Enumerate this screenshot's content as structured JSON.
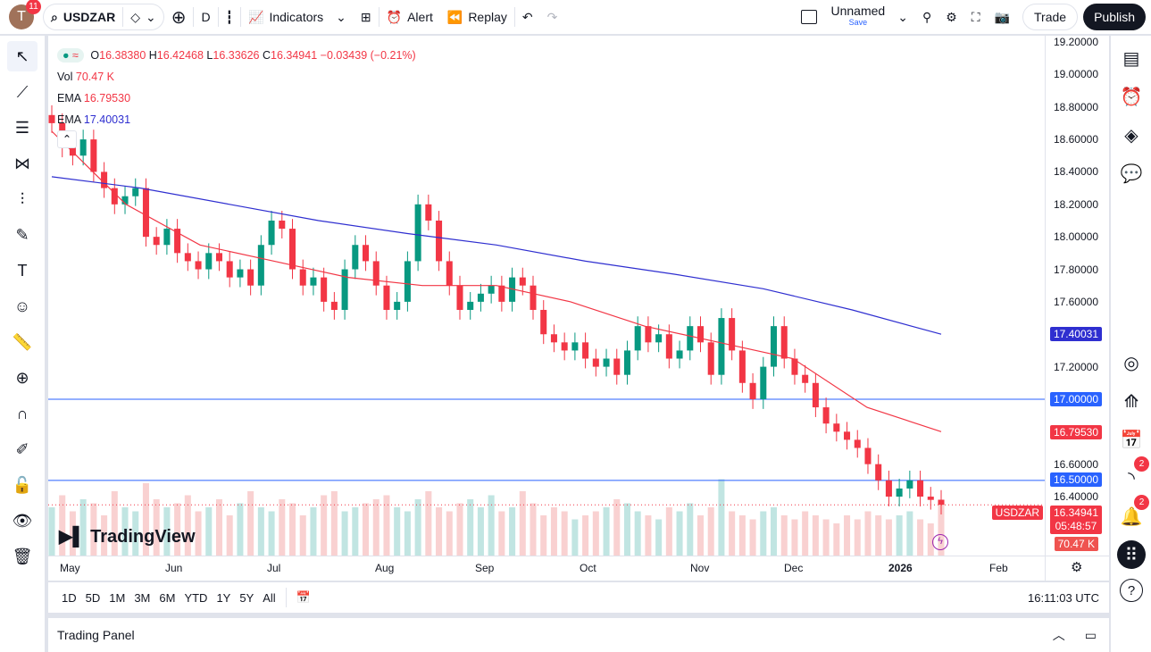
{
  "topbar": {
    "avatar_letter": "T",
    "notifications": "11",
    "symbol": "USDZAR",
    "interval": "D",
    "indicators": "Indicators",
    "alert": "Alert",
    "replay": "Replay",
    "layout_name": "Unnamed",
    "layout_save": "Save",
    "trade": "Trade",
    "publish": "Publish"
  },
  "legend": {
    "o_label": "O",
    "o": "16.38380",
    "h_label": "H",
    "h": "16.42468",
    "l_label": "L",
    "l": "16.33626",
    "c_label": "C",
    "c": "16.34941",
    "change": "−0.03439 (−0.21%)",
    "vol_label": "Vol",
    "vol": "70.47 K",
    "ema1_label": "EMA",
    "ema1": "16.79530",
    "ema2_label": "EMA",
    "ema2": "17.40031"
  },
  "price_axis": {
    "ticks": [
      "19.20000",
      "19.00000",
      "18.80000",
      "18.60000",
      "18.40000",
      "18.20000",
      "18.00000",
      "17.80000",
      "17.60000",
      "17.20000",
      "16.60000",
      "16.40000"
    ],
    "ema2_tag": "17.40031",
    "line1_tag": "17.00000",
    "ema1_tag": "16.79530",
    "line2_tag": "16.50000",
    "symbol_tag": "USDZAR",
    "price_tag": "16.34941",
    "countdown": "05:48:57",
    "vol_tag": "70.47 K"
  },
  "time_axis": [
    "May",
    "Jun",
    "Jul",
    "Aug",
    "Sep",
    "Oct",
    "Nov",
    "Dec",
    "2026",
    "Feb"
  ],
  "watermark": "TradingView",
  "bottom": {
    "ranges": [
      "1D",
      "5D",
      "1M",
      "3M",
      "6M",
      "YTD",
      "1Y",
      "5Y",
      "All"
    ],
    "clock": "16:11:03 UTC"
  },
  "trading_panel": "Trading Panel",
  "right_badges": {
    "feed": "2",
    "alerts": "2"
  },
  "colors": {
    "up": "#089981",
    "down": "#f23645",
    "ema_fast": "#f23645",
    "ema_slow": "#2f2fd0",
    "hline": "#2962ff"
  },
  "chart_data": {
    "type": "candlestick",
    "symbol": "USDZAR",
    "interval": "D",
    "ylim": [
      16.2,
      19.2
    ],
    "closes": [
      18.7,
      18.55,
      18.5,
      18.6,
      18.4,
      18.3,
      18.2,
      18.25,
      18.3,
      18.0,
      17.95,
      18.05,
      17.9,
      17.85,
      17.8,
      17.9,
      17.85,
      17.75,
      17.8,
      17.7,
      17.95,
      18.1,
      18.05,
      17.8,
      17.7,
      17.75,
      17.6,
      17.55,
      17.8,
      17.95,
      17.85,
      17.7,
      17.55,
      17.6,
      17.85,
      18.2,
      18.1,
      17.85,
      17.7,
      17.55,
      17.6,
      17.65,
      17.7,
      17.6,
      17.75,
      17.7,
      17.55,
      17.4,
      17.35,
      17.3,
      17.35,
      17.25,
      17.2,
      17.25,
      17.15,
      17.3,
      17.45,
      17.35,
      17.4,
      17.25,
      17.3,
      17.45,
      17.35,
      17.15,
      17.5,
      17.3,
      17.1,
      17.0,
      17.2,
      17.45,
      17.25,
      17.15,
      17.1,
      16.95,
      16.85,
      16.8,
      16.75,
      16.7,
      16.6,
      16.5,
      16.4,
      16.45,
      16.5,
      16.4,
      16.38,
      16.35
    ],
    "volumes": [
      60,
      75,
      55,
      70,
      65,
      50,
      80,
      60,
      55,
      90,
      70,
      60,
      65,
      75,
      55,
      60,
      70,
      50,
      65,
      80,
      60,
      55,
      70,
      65,
      50,
      60,
      75,
      80,
      55,
      60,
      65,
      70,
      75,
      60,
      55,
      70,
      80,
      60,
      55,
      65,
      70,
      60,
      75,
      55,
      60,
      80,
      65,
      50,
      60,
      55,
      45,
      50,
      55,
      60,
      70,
      65,
      55,
      50,
      45,
      60,
      55,
      65,
      50,
      60,
      95,
      55,
      50,
      45,
      55,
      60,
      50,
      45,
      55,
      50,
      45,
      40,
      50,
      45,
      55,
      50,
      45,
      50,
      55,
      45,
      40,
      70
    ],
    "ema_fast": [
      18.65,
      18.2,
      17.95,
      17.85,
      17.75,
      17.7,
      17.7,
      17.6,
      17.45,
      17.35,
      17.25,
      16.95,
      16.8
    ],
    "ema_slow": [
      18.37,
      18.3,
      18.2,
      18.1,
      18.02,
      17.95,
      17.85,
      17.77,
      17.68,
      17.55,
      17.4
    ],
    "hlines": [
      17.0,
      16.5
    ],
    "last_price": 16.34941
  }
}
